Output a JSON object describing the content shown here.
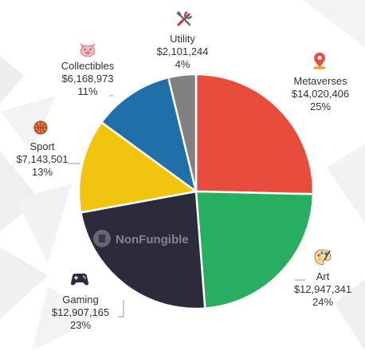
{
  "chart_data": {
    "type": "pie",
    "slices": [
      {
        "label": "Metaverses",
        "value": "$14,020,406",
        "amount": 14020406,
        "percent": "25%",
        "pct": 25,
        "color": "#e84c3d",
        "icon": "map-pin-icon"
      },
      {
        "label": "Art",
        "value": "$12,947,341",
        "amount": 12947341,
        "percent": "24%",
        "pct": 24,
        "color": "#27ae60",
        "icon": "palette-icon"
      },
      {
        "label": "Gaming",
        "value": "$12,907,165",
        "amount": 12907165,
        "percent": "23%",
        "pct": 23,
        "color": "#2b2b3c",
        "icon": "gamepad-icon"
      },
      {
        "label": "Sport",
        "value": "$7,143,501",
        "amount": 7143501,
        "percent": "13%",
        "pct": 13,
        "color": "#f1c40f",
        "icon": "basketball-icon"
      },
      {
        "label": "Collectibles",
        "value": "$6,168,973",
        "amount": 6168973,
        "percent": "11%",
        "pct": 11,
        "color": "#1f6fa8",
        "icon": "pig-icon"
      },
      {
        "label": "Utility",
        "value": "$2,101,244",
        "amount": 2101244,
        "percent": "4%",
        "pct": 4,
        "color": "#808080",
        "icon": "tools-icon"
      }
    ],
    "start_angle": "top, clockwise"
  },
  "watermark": "NonFungible"
}
